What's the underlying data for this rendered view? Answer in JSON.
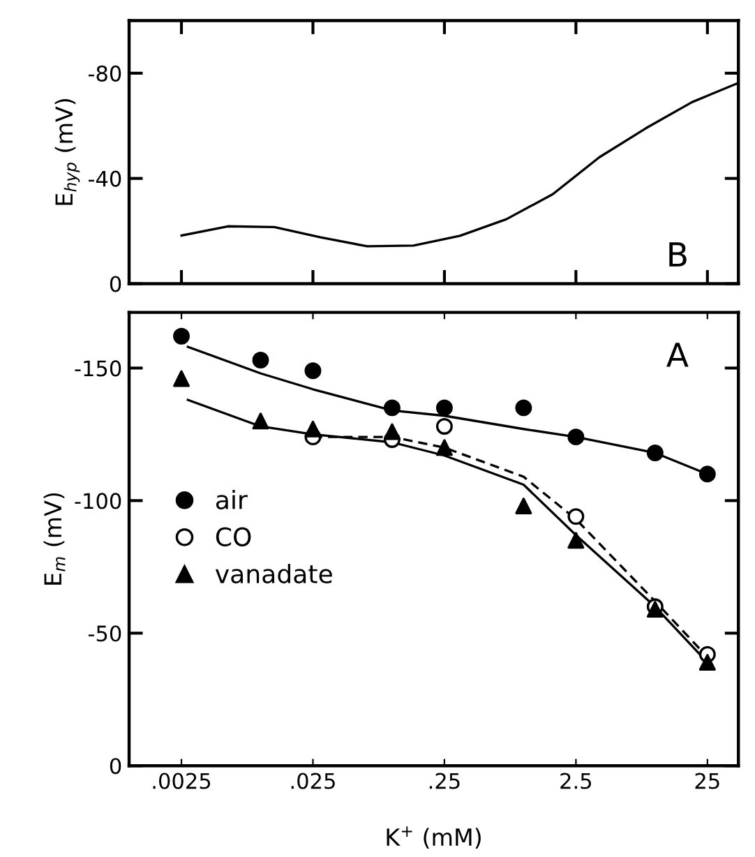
{
  "chart_data": [
    {
      "type": "line",
      "ylabel": "E$_{hyp}$ (mV)",
      "categories": [
        null,
        null,
        null,
        null,
        null,
        null,
        null,
        null,
        null,
        null,
        null,
        null,
        null
      ],
      "ylim": [
        0,
        -100
      ],
      "yticks": [
        0,
        -40,
        -80
      ],
      "tick_labels": "y",
      "grid": false,
      "legend": false,
      "annotations": [
        "B"
      ],
      "series": [
        {
          "color": "#000000",
          "line_style": "solid",
          "marker": "none",
          "values": [
            -18.3,
            -21.8,
            -21.5,
            -17.6,
            -14.2,
            -14.5,
            -18.2,
            -24.5,
            -34,
            -48,
            -59,
            -69,
            -76.3
          ]
        }
      ]
    },
    {
      "type": "scatter",
      "xlabel": "K$^{+}$ (mM)",
      "ylabel": "E$_{m}$ (mV)",
      "xlim": [
        0.001,
        43
      ],
      "ylim": [
        0,
        -171
      ],
      "yticks": [
        0,
        -50,
        -100,
        -150
      ],
      "xticks": [
        {
          "value": 0.0025,
          "label": ".0025"
        },
        {
          "value": 0.025,
          "label": ".025"
        },
        {
          "value": 0.25,
          "label": ".25"
        },
        {
          "value": 2.5,
          "label": "2.5"
        },
        {
          "value": 25,
          "label": "25"
        }
      ],
      "log": "x",
      "grid": false,
      "legend": "left",
      "annotations": [
        "A"
      ],
      "series": [
        {
          "name": "air",
          "color": "#000000",
          "marker": "circle",
          "x": [
            0.0025,
            0.01,
            0.025,
            0.1,
            0.25,
            1,
            2.5,
            10,
            25
          ],
          "values": [
            -162,
            -153,
            -149,
            -135,
            -135,
            -135,
            -124,
            -118,
            -110
          ]
        },
        {
          "name": "CO",
          "color": "#ffffff",
          "marker": "circle",
          "x": [
            0.025,
            0.1,
            0.25,
            2.5,
            10,
            25
          ],
          "values": [
            -124,
            -123,
            -128,
            -94,
            -60,
            -42
          ]
        },
        {
          "name": "vanadate",
          "color": "#000000",
          "marker": "triangle",
          "x": [
            0.0025,
            0.01,
            0.025,
            0.1,
            0.25,
            1,
            2.5,
            10,
            25
          ],
          "values": [
            -146,
            -130,
            -127,
            -126,
            -120,
            -98,
            -85,
            -59,
            -39
          ]
        },
        {
          "type": "line",
          "color": "#000000",
          "line_style": "solid",
          "marker": "none",
          "x": [
            0.0028,
            0.01,
            0.025,
            0.1,
            0.25,
            1,
            2.5,
            10,
            25
          ],
          "values": [
            -158,
            -148,
            -142,
            -134,
            -132,
            -127,
            -124,
            -118,
            -110
          ]
        },
        {
          "type": "line",
          "color": "#000000",
          "line_style": "solid",
          "marker": "none",
          "x": [
            0.0028,
            0.01,
            0.025,
            0.1,
            0.25,
            1,
            2.5,
            10,
            25
          ],
          "values": [
            -138,
            -128,
            -125,
            -122,
            -117,
            -106,
            -87,
            -60,
            -39
          ]
        },
        {
          "type": "line",
          "color": "#000000",
          "line_style": "dashed",
          "marker": "none",
          "x": [
            0.025,
            0.1,
            0.25,
            1,
            2.5,
            10,
            25
          ],
          "values": [
            -124,
            -124,
            -120,
            -109,
            -93,
            -62,
            -41
          ]
        }
      ]
    }
  ]
}
